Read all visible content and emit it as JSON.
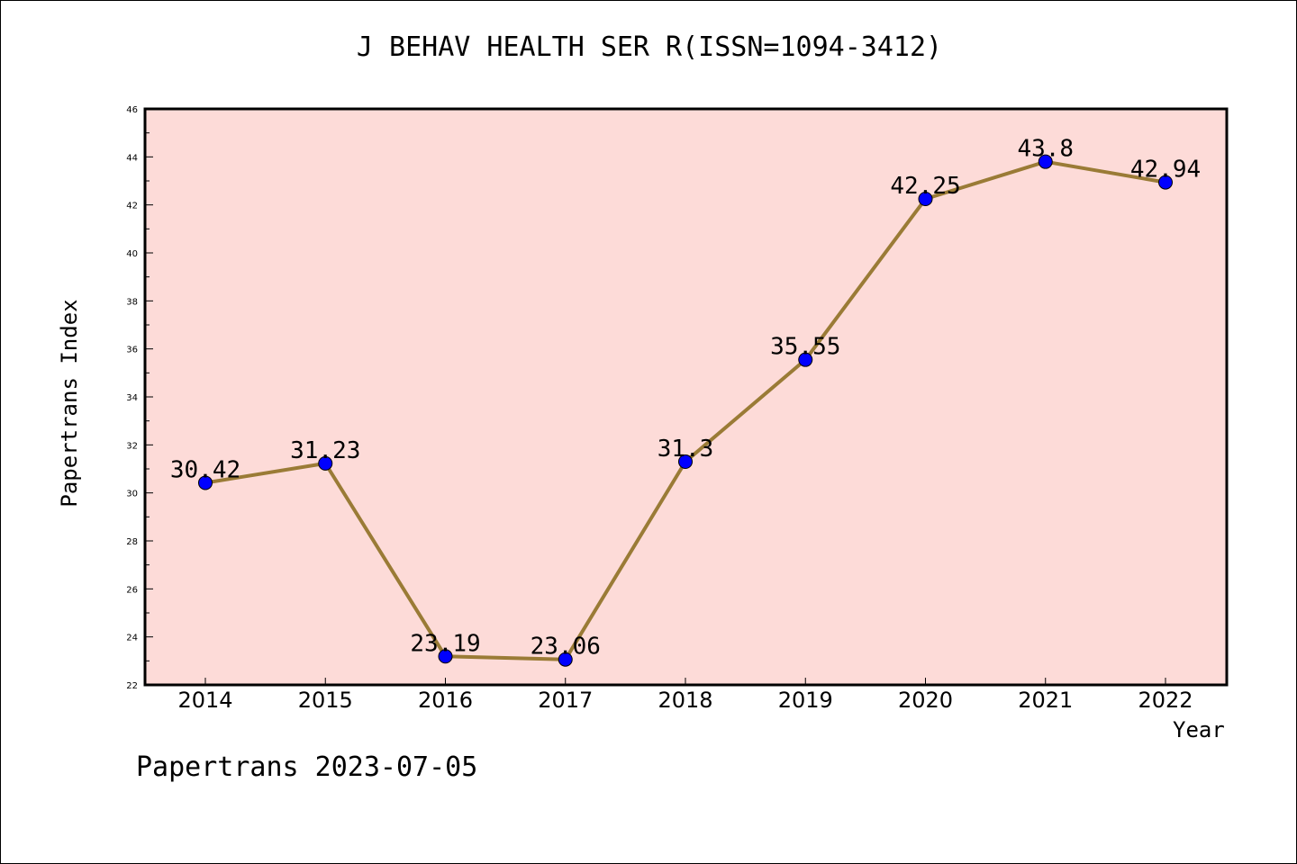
{
  "title": "J BEHAV HEALTH SER R(ISSN=1094-3412)",
  "footer": "Papertrans 2023-07-05",
  "colors": {
    "plot_background": "#fddbd8",
    "line": "#9a7b36",
    "marker": "#0000ff",
    "axis": "#000000"
  },
  "chart_data": {
    "type": "line",
    "title": "J BEHAV HEALTH SER R(ISSN=1094-3412)",
    "xlabel": "Year",
    "ylabel": "Papertrans Index",
    "ylim": [
      22,
      46
    ],
    "yticks": [
      22,
      24,
      26,
      28,
      30,
      32,
      34,
      36,
      38,
      40,
      42,
      44,
      46
    ],
    "grid": false,
    "categories": [
      "2014",
      "2015",
      "2016",
      "2017",
      "2018",
      "2019",
      "2020",
      "2021",
      "2022"
    ],
    "series": [
      {
        "values": [
          30.42,
          31.23,
          23.19,
          23.06,
          31.3,
          35.55,
          42.25,
          43.8,
          42.94
        ],
        "labels": [
          "30.42",
          "31.23",
          "23.19",
          "23.06",
          "31.3",
          "35.55",
          "42.25",
          "43.8",
          "42.94"
        ]
      }
    ]
  }
}
